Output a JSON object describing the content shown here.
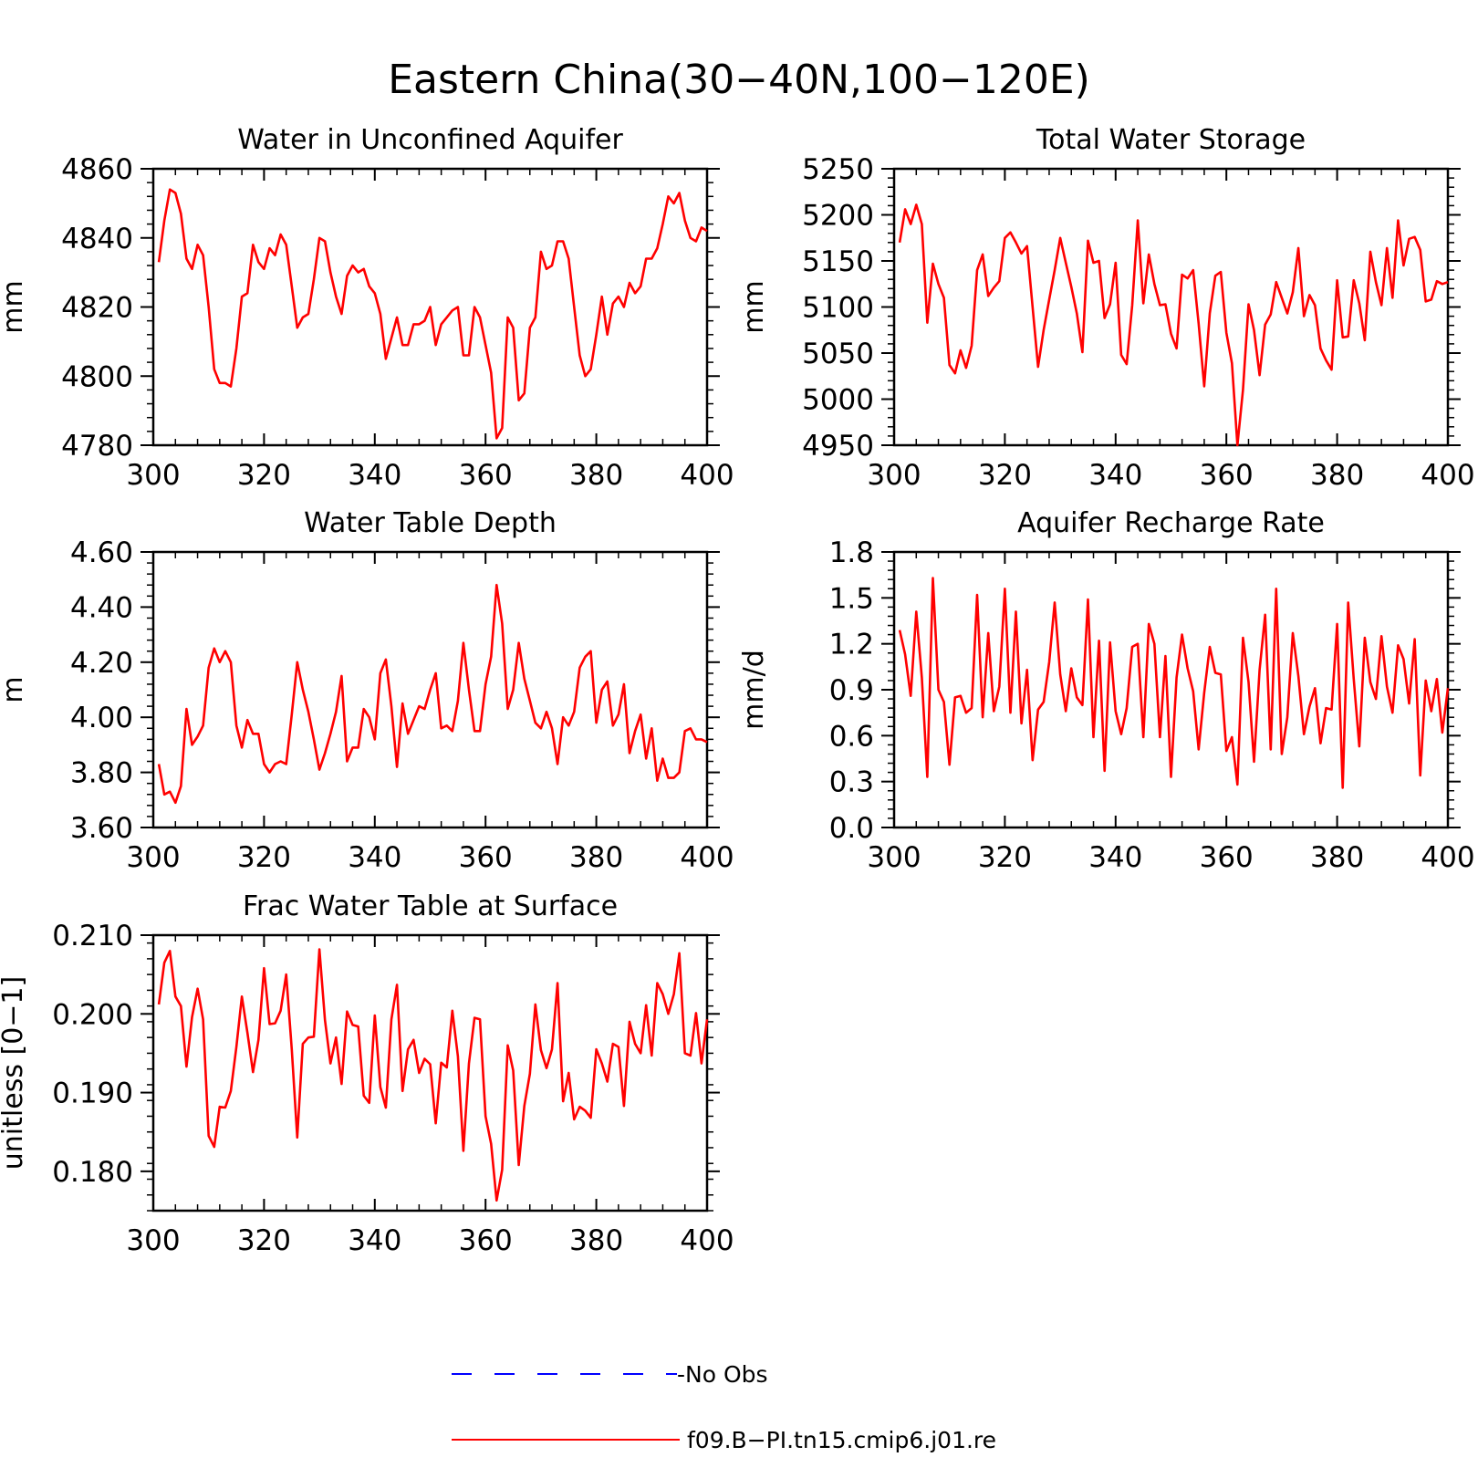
{
  "title": "Eastern China(30−40N,100−120E)",
  "colors": {
    "model": "#ff0000",
    "obs": "#0000ff",
    "axis": "#000000"
  },
  "legend": {
    "entries": [
      {
        "label": "-No Obs",
        "style": "dashed",
        "color": "#0000ff"
      },
      {
        "label": "f09.B−PI.tn15.cmip6.j01.re",
        "style": "solid",
        "color": "#ff0000"
      }
    ]
  },
  "chart_data": [
    {
      "type": "line",
      "title": "Water in Unconfined Aquifer",
      "ylabel": "mm",
      "xlim": [
        300,
        400
      ],
      "ylim": [
        4780,
        4860
      ],
      "xticks": [
        "300",
        "320",
        "340",
        "360",
        "380",
        "400"
      ],
      "yticks": [
        "4780",
        "4800",
        "4820",
        "4840",
        "4860"
      ],
      "series": [
        {
          "x_start": 301,
          "values": [
            4833,
            4845,
            4854,
            4853,
            4847,
            4834,
            4831,
            4838,
            4835,
            4820,
            4802,
            4798,
            4798,
            4797,
            4808,
            4823,
            4824,
            4838,
            4833,
            4831,
            4837,
            4835,
            4841,
            4838,
            4826,
            4814,
            4817,
            4818,
            4828,
            4840,
            4839,
            4830,
            4823,
            4818,
            4829,
            4832,
            4830,
            4831,
            4826,
            4824,
            4818,
            4805,
            4811,
            4817,
            4809,
            4809,
            4815,
            4815,
            4816,
            4820,
            4809,
            4815,
            4817,
            4819,
            4820,
            4806,
            4806,
            4820,
            4817,
            4809,
            4801,
            4782,
            4785,
            4817,
            4814,
            4793,
            4795,
            4814,
            4817,
            4836,
            4831,
            4832,
            4839,
            4839,
            4834,
            4820,
            4806,
            4800,
            4802,
            4812,
            4823,
            4812,
            4821,
            4823,
            4820,
            4827,
            4824,
            4826,
            4834,
            4834,
            4837,
            4844,
            4852,
            4850,
            4853,
            4845,
            4840,
            4839,
            4843,
            4842
          ]
        }
      ]
    },
    {
      "type": "line",
      "title": "Total Water Storage",
      "ylabel": "mm",
      "xlim": [
        300,
        400
      ],
      "ylim": [
        4950,
        5250
      ],
      "xticks": [
        "300",
        "320",
        "340",
        "360",
        "380",
        "400"
      ],
      "yticks": [
        "4950",
        "5000",
        "5050",
        "5100",
        "5150",
        "5200",
        "5250"
      ],
      "series": [
        {
          "x_start": 301,
          "values": [
            5170,
            5206,
            5190,
            5211,
            5190,
            5083,
            5147,
            5125,
            5110,
            5037,
            5028,
            5053,
            5034,
            5058,
            5140,
            5157,
            5112,
            5121,
            5128,
            5175,
            5181,
            5170,
            5158,
            5166,
            5100,
            5035,
            5075,
            5108,
            5140,
            5175,
            5148,
            5122,
            5093,
            5051,
            5172,
            5148,
            5150,
            5088,
            5103,
            5148,
            5048,
            5038,
            5102,
            5194,
            5104,
            5157,
            5125,
            5102,
            5103,
            5071,
            5055,
            5135,
            5131,
            5140,
            5082,
            5014,
            5093,
            5134,
            5138,
            5072,
            5039,
            4950,
            5010,
            5103,
            5075,
            5026,
            5081,
            5092,
            5127,
            5110,
            5093,
            5116,
            5164,
            5090,
            5113,
            5102,
            5055,
            5042,
            5032,
            5129,
            5067,
            5068,
            5129,
            5104,
            5064,
            5160,
            5127,
            5102,
            5164,
            5110,
            5194,
            5145,
            5174,
            5176,
            5162,
            5106,
            5108,
            5128,
            5125,
            5127
          ]
        }
      ]
    },
    {
      "type": "line",
      "title": "Water Table Depth",
      "ylabel": "m",
      "xlim": [
        300,
        400
      ],
      "ylim": [
        3.6,
        4.6
      ],
      "xticks": [
        "300",
        "320",
        "340",
        "360",
        "380",
        "400"
      ],
      "yticks": [
        "3.60",
        "3.80",
        "4.00",
        "4.20",
        "4.40",
        "4.60"
      ],
      "series": [
        {
          "x_start": 301,
          "values": [
            3.83,
            3.72,
            3.73,
            3.69,
            3.75,
            4.03,
            3.9,
            3.93,
            3.97,
            4.18,
            4.25,
            4.2,
            4.24,
            4.2,
            3.97,
            3.89,
            3.99,
            3.94,
            3.94,
            3.83,
            3.8,
            3.83,
            3.84,
            3.83,
            4.01,
            4.2,
            4.1,
            4.02,
            3.92,
            3.81,
            3.87,
            3.94,
            4.02,
            4.15,
            3.84,
            3.89,
            3.89,
            4.03,
            4.0,
            3.92,
            4.16,
            4.21,
            4.04,
            3.82,
            4.05,
            3.94,
            3.99,
            4.04,
            4.03,
            4.1,
            4.16,
            3.96,
            3.97,
            3.95,
            4.06,
            4.27,
            4.1,
            3.95,
            3.95,
            4.12,
            4.22,
            4.48,
            4.34,
            4.03,
            4.1,
            4.27,
            4.14,
            4.06,
            3.98,
            3.96,
            4.02,
            3.96,
            3.83,
            4.0,
            3.97,
            4.02,
            4.18,
            4.22,
            4.24,
            3.98,
            4.1,
            4.13,
            3.97,
            4.01,
            4.12,
            3.87,
            3.95,
            4.01,
            3.85,
            3.96,
            3.77,
            3.85,
            3.78,
            3.78,
            3.8,
            3.95,
            3.96,
            3.92,
            3.92,
            3.91
          ]
        }
      ]
    },
    {
      "type": "line",
      "title": "Aquifer Recharge Rate",
      "ylabel": "mm/d",
      "xlim": [
        300,
        400
      ],
      "ylim": [
        0.0,
        1.8
      ],
      "xticks": [
        "300",
        "320",
        "340",
        "360",
        "380",
        "400"
      ],
      "yticks": [
        "0.0",
        "0.3",
        "0.6",
        "0.9",
        "1.2",
        "1.5",
        "1.8"
      ],
      "series": [
        {
          "x_start": 301,
          "values": [
            1.29,
            1.13,
            0.86,
            1.41,
            0.98,
            0.33,
            1.63,
            0.9,
            0.82,
            0.41,
            0.85,
            0.86,
            0.75,
            0.78,
            1.52,
            0.72,
            1.27,
            0.76,
            0.92,
            1.56,
            0.75,
            1.41,
            0.68,
            1.03,
            0.44,
            0.77,
            0.82,
            1.08,
            1.47,
            1.0,
            0.76,
            1.04,
            0.85,
            0.8,
            1.49,
            0.59,
            1.22,
            0.37,
            1.21,
            0.76,
            0.61,
            0.78,
            1.18,
            1.2,
            0.59,
            1.33,
            1.2,
            0.59,
            1.12,
            0.33,
            0.98,
            1.26,
            1.04,
            0.89,
            0.51,
            0.88,
            1.18,
            1.01,
            1.0,
            0.5,
            0.59,
            0.28,
            1.24,
            0.95,
            0.43,
            1.03,
            1.39,
            0.51,
            1.56,
            0.48,
            0.72,
            1.27,
            0.99,
            0.61,
            0.79,
            0.91,
            0.55,
            0.78,
            0.77,
            1.33,
            0.26,
            1.47,
            0.97,
            0.53,
            1.24,
            0.95,
            0.84,
            1.25,
            0.92,
            0.75,
            1.19,
            1.1,
            0.81,
            1.23,
            0.34,
            0.96,
            0.76,
            0.97,
            0.62,
            0.91
          ]
        }
      ]
    },
    {
      "type": "line",
      "title": "Frac Water Table at Surface",
      "ylabel": "unitless [0−1]",
      "xlim": [
        300,
        400
      ],
      "ylim": [
        0.175,
        0.21
      ],
      "xticks": [
        "300",
        "320",
        "340",
        "360",
        "380",
        "400"
      ],
      "yticks": [
        "0.180",
        "0.190",
        "0.200",
        "0.210"
      ],
      "series": [
        {
          "x_start": 301,
          "values": [
            0.2012,
            0.2065,
            0.208,
            0.2022,
            0.201,
            0.1933,
            0.1996,
            0.2032,
            0.1993,
            0.1845,
            0.1831,
            0.1882,
            0.1881,
            0.1902,
            0.1958,
            0.2022,
            0.1976,
            0.1926,
            0.1967,
            0.2058,
            0.1987,
            0.1988,
            0.2004,
            0.205,
            0.1955,
            0.1843,
            0.1962,
            0.197,
            0.1971,
            0.2082,
            0.1992,
            0.1937,
            0.197,
            0.1911,
            0.2003,
            0.1986,
            0.1984,
            0.1896,
            0.1887,
            0.1998,
            0.1907,
            0.1881,
            0.1993,
            0.2037,
            0.1902,
            0.1955,
            0.1967,
            0.1925,
            0.1943,
            0.1936,
            0.1861,
            0.1938,
            0.1932,
            0.2004,
            0.1946,
            0.1826,
            0.1937,
            0.1995,
            0.1993,
            0.187,
            0.1835,
            0.1763,
            0.1802,
            0.196,
            0.1928,
            0.1808,
            0.1883,
            0.1924,
            0.2012,
            0.1954,
            0.1931,
            0.1955,
            0.2039,
            0.1889,
            0.1925,
            0.1866,
            0.1882,
            0.1877,
            0.1868,
            0.1955,
            0.1937,
            0.1914,
            0.1962,
            0.1958,
            0.1883,
            0.199,
            0.1962,
            0.195,
            0.2011,
            0.1947,
            0.2039,
            0.2025,
            0.2,
            0.2025,
            0.2077,
            0.195,
            0.1947,
            0.2001,
            0.1937,
            0.1993
          ]
        }
      ]
    }
  ]
}
